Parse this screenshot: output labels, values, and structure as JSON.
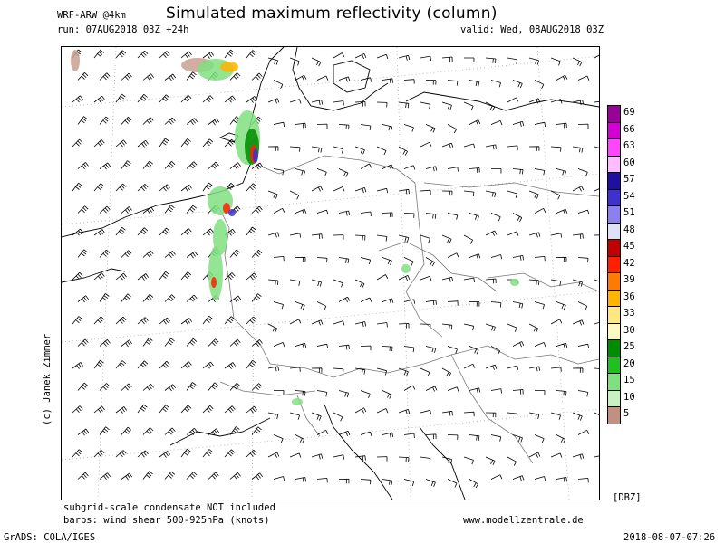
{
  "header": {
    "model": "WRF-ARW @4km",
    "title": "Simulated maximum reflectivity (column)",
    "run": "run: 07AUG2018 03Z +24h",
    "valid": "valid: Wed, 08AUG2018 03Z"
  },
  "copyright": "(c) Janek Zimmer",
  "footer": {
    "note1": "subgrid-scale condensate NOT included",
    "note2": "barbs: wind shear 500-925hPa (knots)",
    "website": "www.modellzentrale.de",
    "grads": "GrADS: COLA/IGES",
    "timestamp": "2018-08-07-07:26"
  },
  "legend": {
    "unit": "[DBZ]",
    "levels": [
      {
        "label": "69",
        "color": "#9a009a"
      },
      {
        "label": "66",
        "color": "#d200d2"
      },
      {
        "label": "63",
        "color": "#ff46ff"
      },
      {
        "label": "60",
        "color": "#ffbbff"
      },
      {
        "label": "57",
        "color": "#2010a0"
      },
      {
        "label": "54",
        "color": "#4030d0"
      },
      {
        "label": "51",
        "color": "#8c80ee"
      },
      {
        "label": "48",
        "color": "#e0e0f8"
      },
      {
        "label": "45",
        "color": "#c00000"
      },
      {
        "label": "42",
        "color": "#ff2000"
      },
      {
        "label": "39",
        "color": "#ff7a00"
      },
      {
        "label": "36",
        "color": "#ffb400"
      },
      {
        "label": "33",
        "color": "#ffe880"
      },
      {
        "label": "30",
        "color": "#fff8c0"
      },
      {
        "label": "25",
        "color": "#008c00"
      },
      {
        "label": "20",
        "color": "#20c020"
      },
      {
        "label": "15",
        "color": "#80e080"
      },
      {
        "label": "10",
        "color": "#c8f0c0"
      },
      {
        "label": "5",
        "color": "#c09080"
      }
    ]
  },
  "map_features": {
    "precip_cells_color_low": "#c8a090",
    "border_color": "#777777",
    "coast_color": "#000000"
  }
}
